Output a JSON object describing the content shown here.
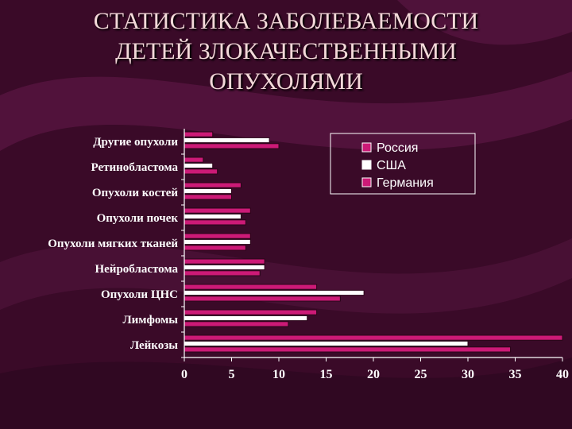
{
  "slide": {
    "title_lines": [
      "СТАТИСТИКА ЗАБОЛЕВАЕМОСТИ",
      "ДЕТЕЙ ЗЛОКАЧЕСТВЕННЫМИ",
      "ОПУХОЛЯМИ"
    ]
  },
  "colors": {
    "background": "#3a0a28",
    "title": "#f3d9d9",
    "axis": "#ffffff",
    "label": "#ffffff",
    "series": [
      "#cc1a77",
      "#ffffff",
      "#cc1a77"
    ]
  },
  "chart_data": {
    "type": "bar",
    "orientation": "horizontal",
    "categories": [
      "Другие опухоли",
      "Ретинобластома",
      "Опухоли костей",
      "Опухоли почек",
      "Опухоли мягких тканей",
      "Нейробластома",
      "Опухоли ЦНС",
      "Лимфомы",
      "Лейкозы"
    ],
    "series": [
      {
        "name": "Россия",
        "values": [
          3,
          2,
          6,
          7,
          7,
          8.5,
          14,
          14,
          40
        ]
      },
      {
        "name": "США",
        "values": [
          9,
          3,
          5,
          6,
          7,
          8.5,
          19,
          13,
          30
        ]
      },
      {
        "name": "Германия",
        "values": [
          10,
          3.5,
          5,
          6.5,
          6.5,
          8,
          16.5,
          11,
          34.5
        ]
      }
    ],
    "xlim": [
      0,
      40
    ],
    "xticks": [
      "0",
      "5",
      "10",
      "15",
      "20",
      "25",
      "30",
      "35",
      "40"
    ],
    "legend_position": "top-right",
    "grid": false
  }
}
